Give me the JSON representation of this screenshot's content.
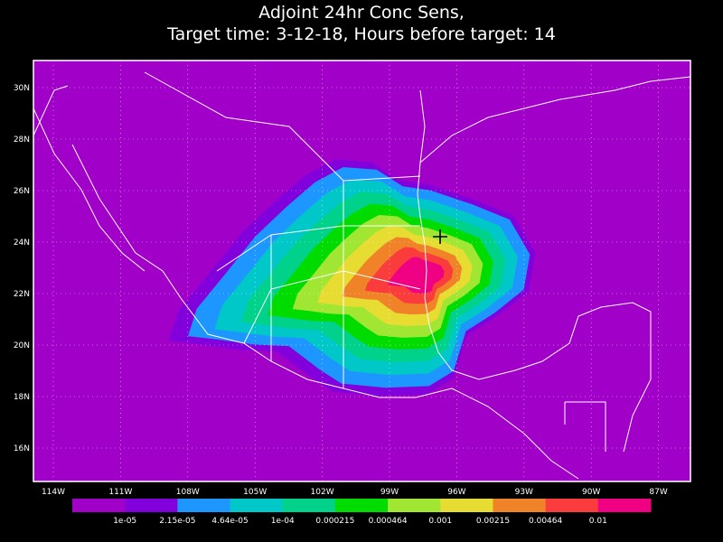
{
  "title": [
    "Adjoint 24hr Conc Sens,",
    "Target time: 3-12-18, Hours before target: 14"
  ],
  "lat_labels": [
    "30N",
    "28N",
    "26N",
    "24N",
    "22N",
    "20N",
    "18N",
    "16N"
  ],
  "lon_labels": [
    "114W",
    "111W",
    "108W",
    "105W",
    "102W",
    "99W",
    "96W",
    "93W",
    "90W",
    "87W"
  ],
  "colorbar": {
    "colors": [
      "#a000c8",
      "#8200dc",
      "#1e96ff",
      "#00c8c8",
      "#00d28c",
      "#00dc00",
      "#a0e632",
      "#e6dc32",
      "#f08228",
      "#fa3c3c",
      "#f00082"
    ],
    "labels": [
      "1e-05",
      "2.15e-05",
      "4.64e-05",
      "1e-04",
      "0.000215",
      "0.000464",
      "0.001",
      "0.00215",
      "0.00464",
      "0.01"
    ]
  }
}
